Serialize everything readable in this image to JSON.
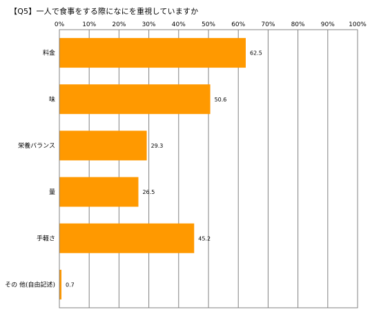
{
  "title": "【Q5】一人で食事をする際になにを重視していますか",
  "chart_data": {
    "type": "bar",
    "orientation": "horizontal",
    "title": "【Q5】一人で食事をする際になにを重視していますか",
    "categories": [
      "料金",
      "味",
      "栄養バランス",
      "量",
      "手軽さ",
      "その 他(自由記述)"
    ],
    "values": [
      62.5,
      50.6,
      29.3,
      26.5,
      45.2,
      0.7
    ],
    "value_labels": [
      "62.5",
      "50.6",
      "29.3",
      "26.5",
      "45.2",
      "0.7"
    ],
    "xlim": [
      0,
      100
    ],
    "x_tick_labels": [
      "0%",
      "10%",
      "20%",
      "30%",
      "40%",
      "50%",
      "60%",
      "70%",
      "80%",
      "90%",
      "100%"
    ],
    "grid": "vertical",
    "bar_color": "#FF9900",
    "xlabel": "",
    "ylabel": ""
  }
}
